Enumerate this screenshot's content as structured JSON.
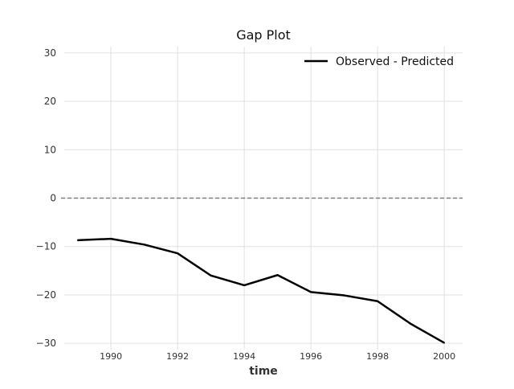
{
  "chart_data": {
    "type": "line",
    "title": "Gap Plot",
    "xlabel": "time",
    "ylabel": "",
    "xlim": [
      1988.6,
      2000.55
    ],
    "ylim": [
      -31.3,
      31.3
    ],
    "x_ticks": [
      1990,
      1992,
      1994,
      1996,
      1998,
      2000
    ],
    "y_ticks": [
      30,
      20,
      10,
      0,
      -10,
      -20,
      -30
    ],
    "y_tick_labels": [
      "30",
      "20",
      "10",
      "0",
      "−10",
      "−20",
      "−30"
    ],
    "grid": true,
    "legend_position": "top-right",
    "reference_line": {
      "y": 0,
      "style": "dashed",
      "color": "#808080"
    },
    "series": [
      {
        "name": "Observed - Predicted",
        "color": "#000000",
        "x": [
          1989,
          1990,
          1991,
          1992,
          1993,
          1994,
          1995,
          1996,
          1997,
          1998,
          1999,
          2000
        ],
        "values": [
          -8.7,
          -8.4,
          -9.6,
          -11.4,
          -16.0,
          -18.0,
          -15.9,
          -19.4,
          -20.1,
          -21.3,
          -26.0,
          -29.9
        ]
      }
    ]
  }
}
